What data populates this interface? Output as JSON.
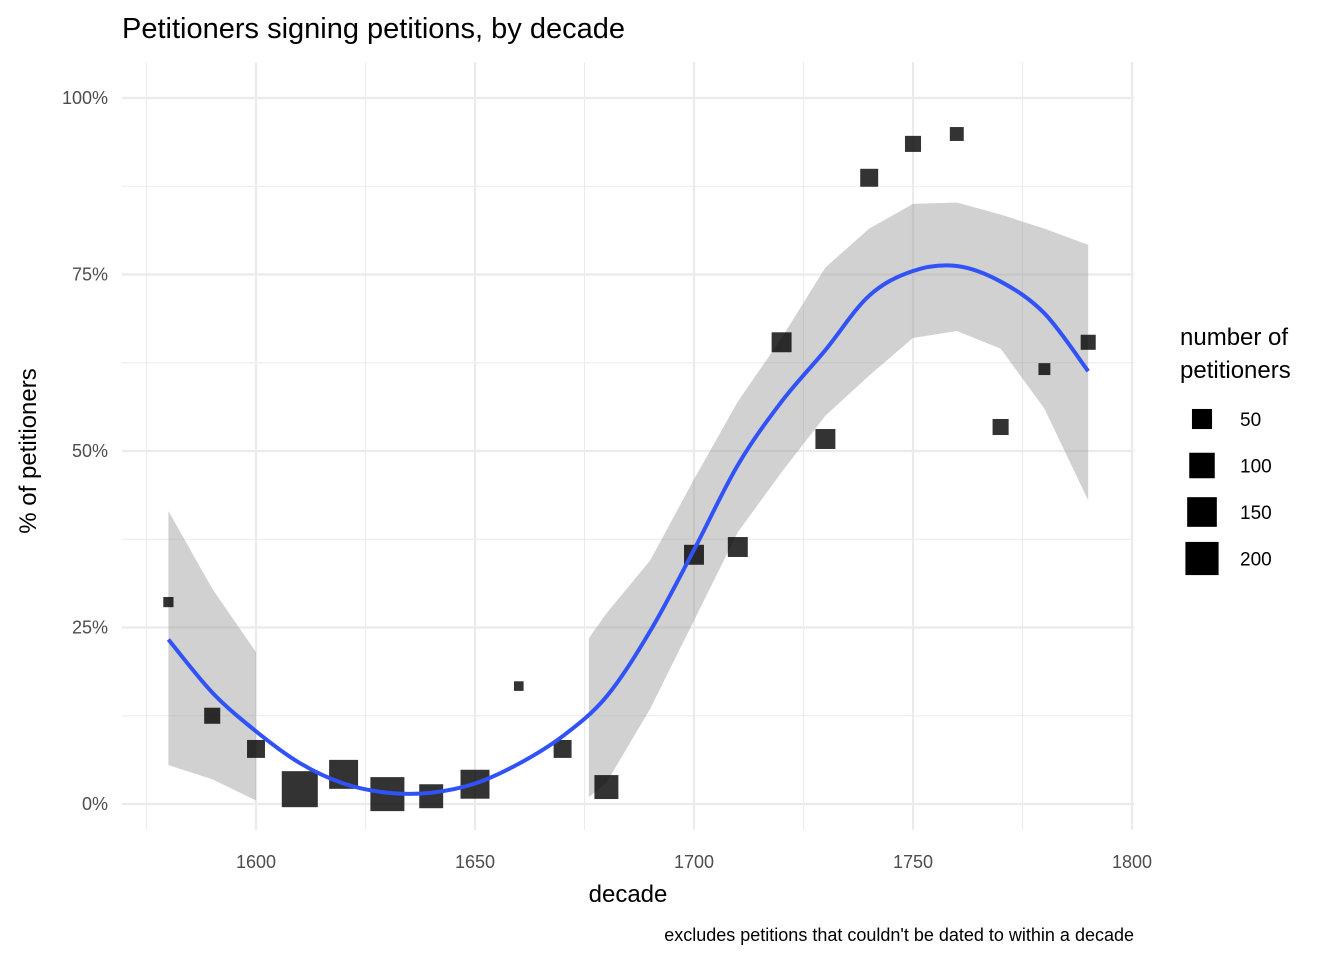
{
  "chart_data": {
    "type": "scatter",
    "title": "Petitioners signing petitions, by decade",
    "xlabel": "decade",
    "ylabel": "% of petitioners",
    "caption": "excludes petitions that couldn't be dated to within a decade",
    "xlim": [
      1570,
      1800
    ],
    "ylim": [
      -4,
      104
    ],
    "x_ticks": [
      1600,
      1650,
      1700,
      1750,
      1800
    ],
    "x_tick_labels": [
      "1600",
      "1650",
      "1700",
      "1750",
      "1800"
    ],
    "y_ticks": [
      0,
      25,
      50,
      75,
      100
    ],
    "y_tick_labels": [
      "0%",
      "25%",
      "50%",
      "75%",
      "100%"
    ],
    "grid": true,
    "legend": {
      "title_line1": "number of",
      "title_line2": "petitioners",
      "placement": "right",
      "sizes": [
        50,
        100,
        150,
        200
      ],
      "labels": [
        "50",
        "100",
        "150",
        "200"
      ]
    },
    "points": {
      "x": [
        1580,
        1590,
        1600,
        1610,
        1620,
        1630,
        1640,
        1650,
        1660,
        1670,
        1680,
        1700,
        1710,
        1720,
        1730,
        1740,
        1750,
        1760,
        1770,
        1780,
        1790
      ],
      "y": [
        28.6,
        12.5,
        7.8,
        2.1,
        4.2,
        1.4,
        1.1,
        2.8,
        16.7,
        7.8,
        2.4,
        35.3,
        36.4,
        65.4,
        51.7,
        88.7,
        93.5,
        94.9,
        53.4,
        61.6,
        65.4
      ],
      "n": [
        3,
        24,
        35,
        246,
        141,
        213,
        84,
        141,
        2,
        35,
        84,
        49,
        49,
        49,
        49,
        35,
        24,
        14,
        24,
        7,
        19
      ]
    },
    "smooth": {
      "x": [
        1580,
        1590,
        1600,
        1610,
        1620,
        1630,
        1640,
        1650,
        1660,
        1670,
        1680,
        1690,
        1700,
        1710,
        1720,
        1730,
        1740,
        1750,
        1760,
        1770,
        1780,
        1790
      ],
      "y": [
        23.3,
        15.8,
        10.3,
        5.8,
        2.9,
        1.6,
        1.6,
        2.9,
        5.7,
        9.6,
        15.2,
        24.5,
        36,
        48,
        57,
        64.3,
        72,
        75.5,
        76.2,
        74,
        69.5,
        61.3
      ],
      "ribbon_segments": [
        {
          "x": [
            1580,
            1590,
            1600
          ],
          "upper": [
            41.5,
            30.5,
            21.5
          ],
          "lower": [
            5.5,
            3.5,
            0.5
          ]
        },
        {
          "x": [
            1676,
            1680,
            1690,
            1700,
            1710,
            1720,
            1730,
            1740,
            1750,
            1760,
            1770,
            1780,
            1790
          ],
          "upper": [
            23.5,
            27,
            34.5,
            46,
            57,
            66,
            76,
            81.5,
            85,
            85.2,
            83.5,
            81.5,
            79.2
          ],
          "lower": [
            1,
            3,
            13.5,
            26,
            38.5,
            47,
            55,
            60.7,
            66,
            67,
            64.5,
            56,
            43
          ]
        }
      ]
    },
    "colors": {
      "line": "#3152f6",
      "ribbon": "#999999",
      "point": "#000000",
      "grid": "#ebebeb"
    }
  }
}
